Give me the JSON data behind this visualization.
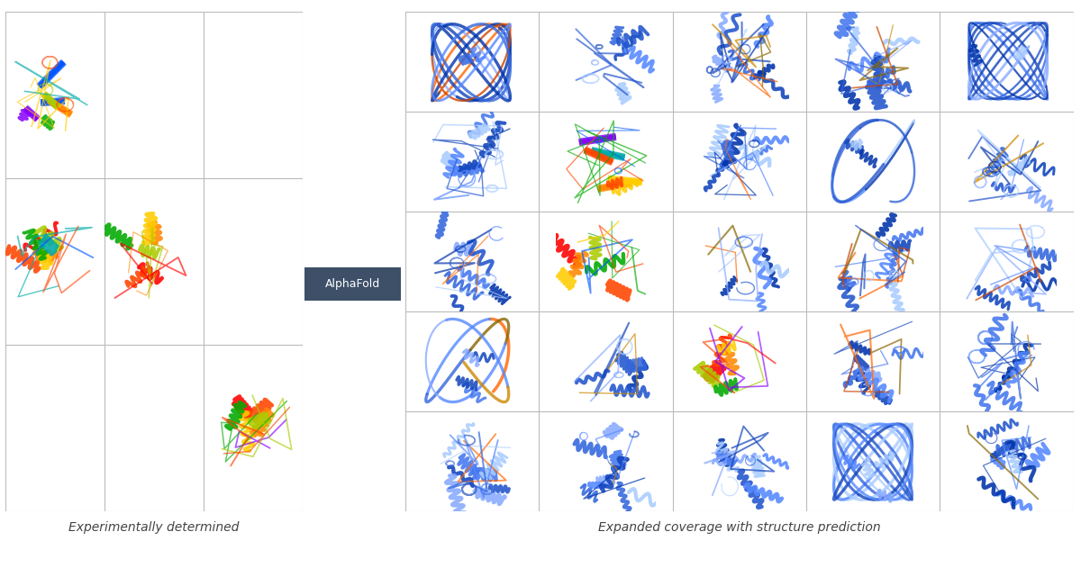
{
  "left_label": "Experimentally determined",
  "right_label": "Expanded coverage with structure prediction",
  "arrow_label": "AlphaFold",
  "arrow_label_bg": "#3d5068",
  "arrow_label_fg": "#ffffff",
  "bg_color": "#ffffff",
  "grid_line_color": "#bbbbbb",
  "arrow_color": "#3d5068",
  "font_size_labels": 10,
  "rainbow_cols": [
    "#ff0000",
    "#ff4400",
    "#ff8800",
    "#ffcc00",
    "#aacc00",
    "#00aa00",
    "#00aaaa",
    "#0055ff",
    "#8800ff"
  ],
  "blue_cols": [
    "#0033aa",
    "#1144bb",
    "#2255cc",
    "#3366dd",
    "#4477ee",
    "#5588ff",
    "#aaccff",
    "#88aaff"
  ],
  "accent_cols": [
    "#cc4400",
    "#ff6600",
    "#cc8800",
    "#886600"
  ]
}
